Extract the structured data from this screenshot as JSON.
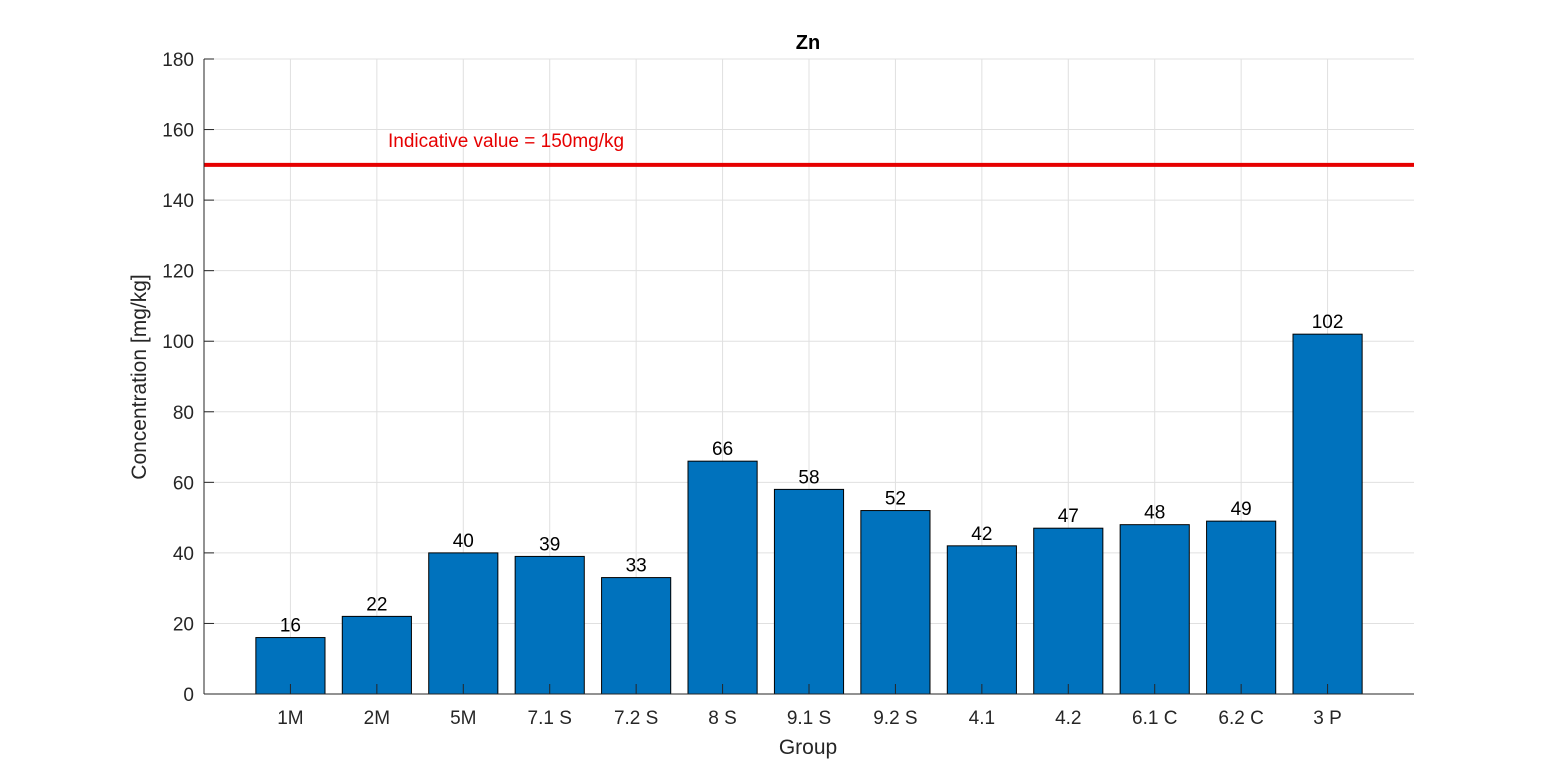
{
  "chart_data": {
    "type": "bar",
    "title": "Zn",
    "xlabel": "Group",
    "ylabel": "Concentration [mg/kg]",
    "categories": [
      "1M",
      "2M",
      "5M",
      "7.1 S",
      "7.2 S",
      "8 S",
      "9.1 S",
      "9.2 S",
      "4.1",
      "4.2",
      "6.1 C",
      "6.2 C",
      "3 P"
    ],
    "values": [
      16,
      22,
      40,
      39,
      33,
      66,
      58,
      52,
      42,
      47,
      48,
      49,
      102
    ],
    "data_labels": [
      "16",
      "22",
      "40",
      "39",
      "33",
      "66",
      "58",
      "52",
      "42",
      "47",
      "48",
      "49",
      "102"
    ],
    "ylim": [
      0,
      180
    ],
    "yticks": [
      0,
      20,
      40,
      60,
      80,
      100,
      120,
      140,
      160,
      180
    ],
    "grid": true,
    "bar_color": "#0072BD",
    "reference_line": {
      "value": 150,
      "label": "Indicative value = 150mg/kg",
      "color": "#E60000"
    }
  }
}
